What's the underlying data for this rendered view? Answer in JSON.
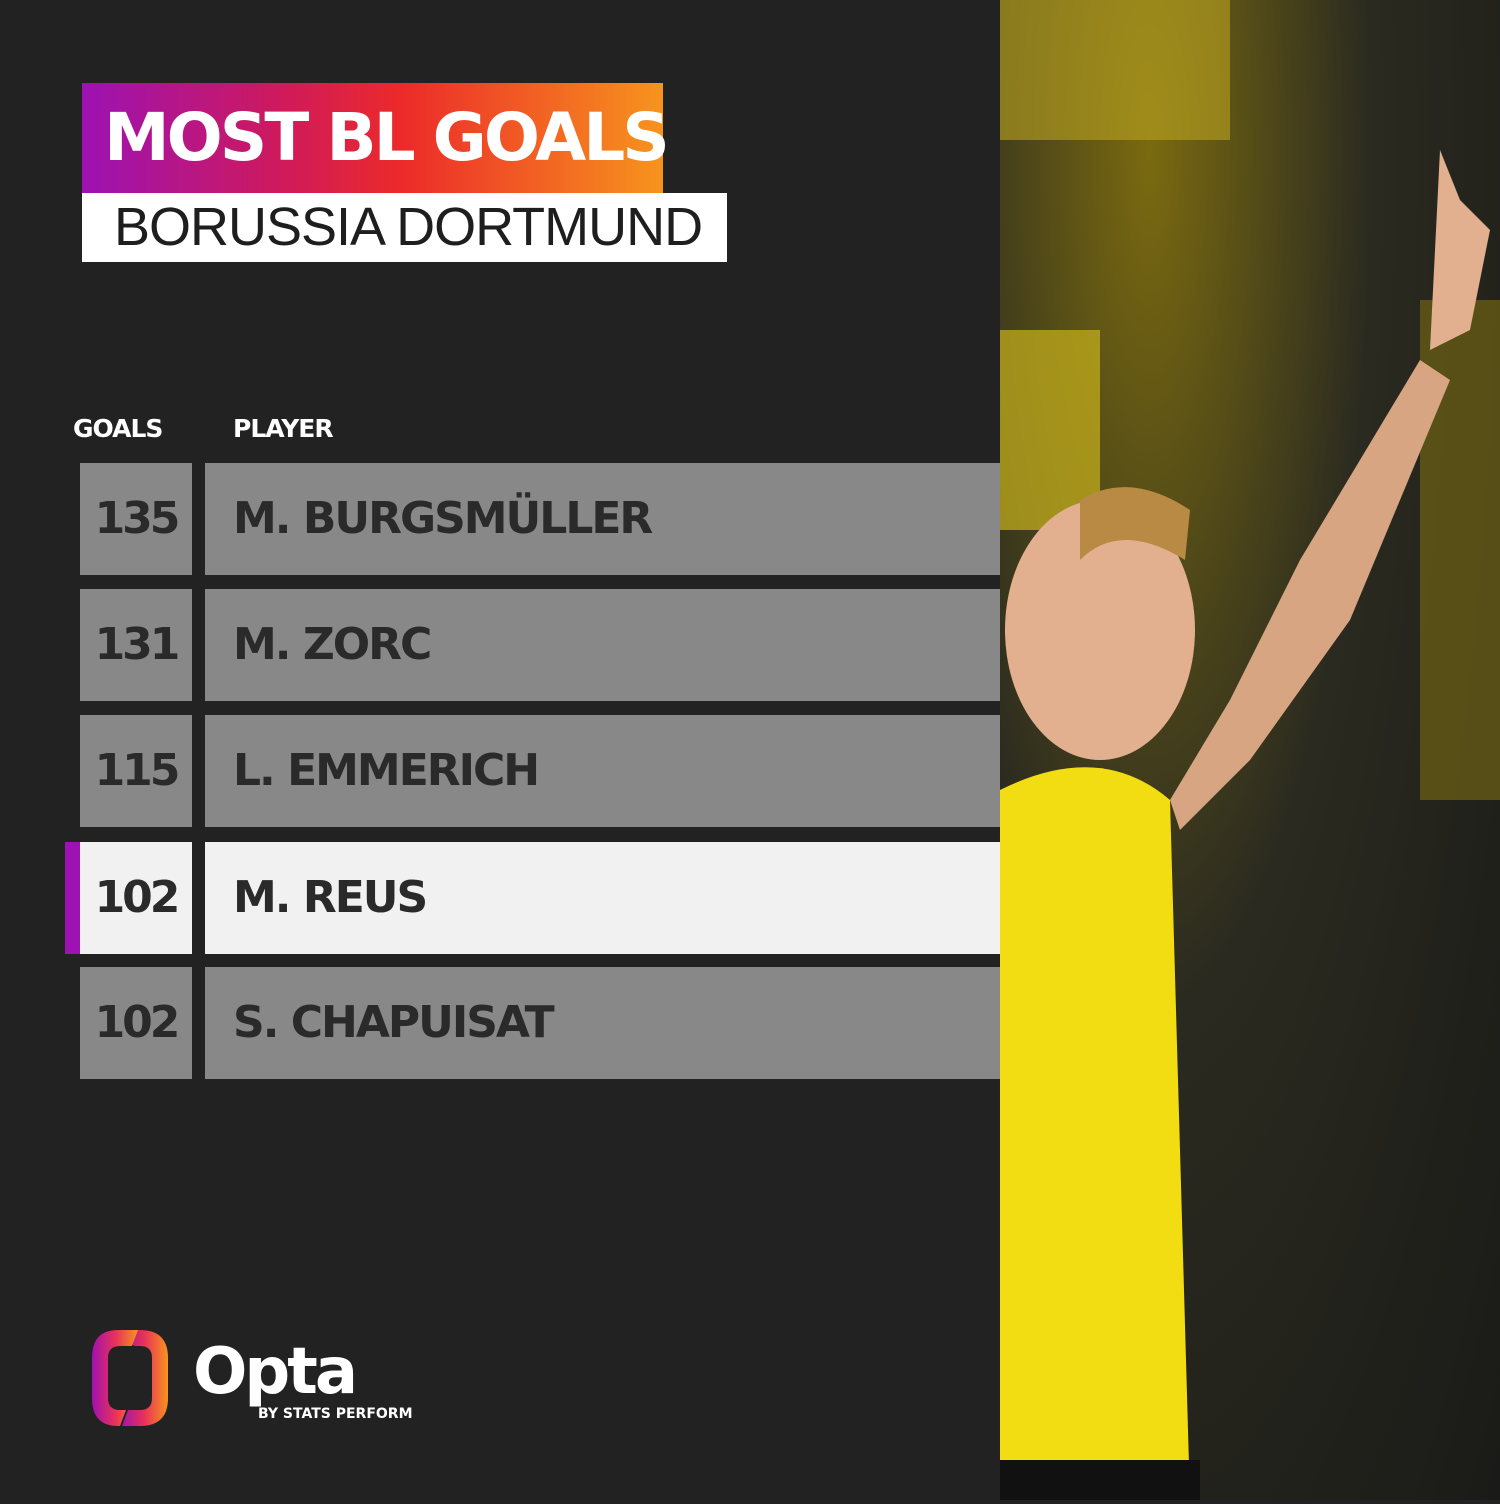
{
  "title": "MOST BL GOALS",
  "subtitle": "BORUSSIA DORTMUND",
  "chart_data": {
    "type": "table",
    "columns": [
      "GOALS",
      "PLAYER"
    ],
    "rows": [
      {
        "goals": "135",
        "player": "M. BURGSMÜLLER",
        "highlighted": false
      },
      {
        "goals": "131",
        "player": "M. ZORC",
        "highlighted": false
      },
      {
        "goals": "115",
        "player": "L. EMMERICH",
        "highlighted": false
      },
      {
        "goals": "102",
        "player": "M. REUS",
        "highlighted": true
      },
      {
        "goals": "102",
        "player": "S. CHAPUISAT",
        "highlighted": false
      }
    ]
  },
  "colors": {
    "background": "#222222",
    "row": "#888888",
    "highlight_row": "#f1f1f1",
    "accent": "#9c12b3",
    "title_gradient": [
      "#9c12b3",
      "#ec2a2a",
      "#f7941d"
    ]
  },
  "logo": {
    "name": "Opta",
    "byline": "BY STATS PERFORM"
  },
  "photo": "player-celebrating-photo"
}
